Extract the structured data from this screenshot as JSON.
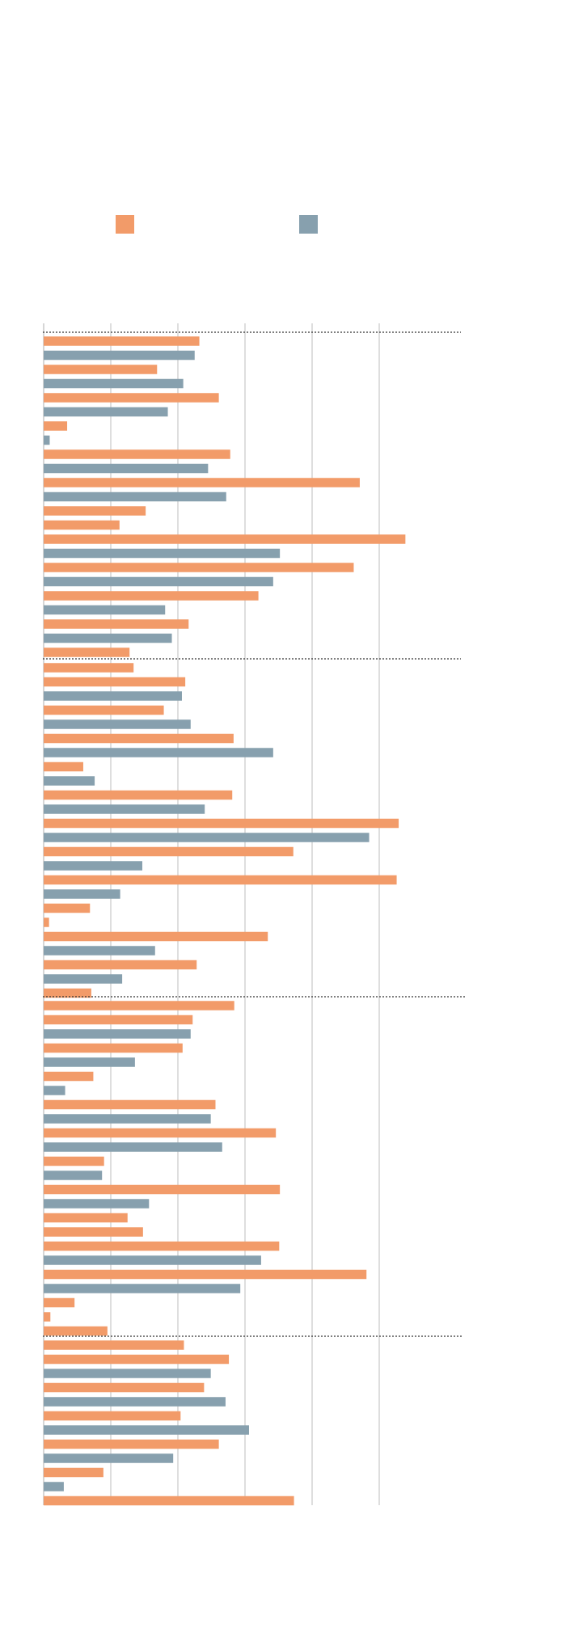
{
  "colors": {
    "series_a": "#f29b69",
    "series_b": "#87a0ae",
    "grid": "#c8c8c8",
    "separator": "#333333"
  },
  "chart_data": {
    "type": "bar",
    "orientation": "horizontal",
    "title": "",
    "xlabel": "",
    "ylabel": "",
    "grid": true,
    "legend_position": "top",
    "xlim": [
      0,
      6.2
    ],
    "series": [
      {
        "name": "",
        "color": "#f29b69"
      },
      {
        "name": "",
        "color": "#87a0ae"
      }
    ],
    "groups": [
      [
        [
          "a",
          2.32
        ],
        [
          "b",
          2.25
        ],
        [
          "a",
          1.69
        ],
        [
          "b",
          2.08
        ],
        [
          "a",
          2.61
        ],
        [
          "b",
          1.85
        ],
        [
          "a",
          0.35
        ],
        [
          "b",
          0.09
        ],
        [
          "a",
          2.78
        ],
        [
          "b",
          2.45
        ],
        [
          "a",
          4.71
        ],
        [
          "b",
          2.72
        ],
        [
          "a",
          1.52
        ],
        [
          "a",
          1.13
        ],
        [
          "a",
          5.39
        ],
        [
          "b",
          3.52
        ],
        [
          "a",
          4.62
        ],
        [
          "b",
          3.42
        ],
        [
          "a",
          3.2
        ],
        [
          "b",
          1.81
        ],
        [
          "a",
          2.16
        ],
        [
          "b",
          1.91
        ],
        [
          "a",
          1.28
        ]
      ],
      [
        [
          "a",
          1.34
        ],
        [
          "a",
          2.11
        ],
        [
          "b",
          2.06
        ],
        [
          "a",
          1.79
        ],
        [
          "b",
          2.19
        ],
        [
          "a",
          2.83
        ],
        [
          "b",
          3.42
        ],
        [
          "a",
          0.59
        ],
        [
          "b",
          0.76
        ],
        [
          "a",
          2.81
        ],
        [
          "b",
          2.4
        ],
        [
          "a",
          5.29
        ],
        [
          "b",
          4.85
        ],
        [
          "a",
          3.72
        ],
        [
          "b",
          1.47
        ],
        [
          "a",
          5.26
        ],
        [
          "b",
          1.14
        ],
        [
          "a",
          0.69
        ],
        [
          "a",
          0.08
        ],
        [
          "a",
          3.34
        ],
        [
          "b",
          1.66
        ],
        [
          "a",
          2.28
        ],
        [
          "b",
          1.17
        ],
        [
          "a",
          0.71
        ]
      ],
      [
        [
          "a",
          2.84
        ],
        [
          "a",
          2.22
        ],
        [
          "b",
          2.19
        ],
        [
          "a",
          2.07
        ],
        [
          "b",
          1.36
        ],
        [
          "a",
          0.74
        ],
        [
          "b",
          0.32
        ],
        [
          "a",
          2.56
        ],
        [
          "b",
          2.49
        ],
        [
          "a",
          3.46
        ],
        [
          "b",
          2.66
        ],
        [
          "a",
          0.9
        ],
        [
          "b",
          0.87
        ],
        [
          "a",
          3.52
        ],
        [
          "b",
          1.57
        ],
        [
          "a",
          1.25
        ],
        [
          "a",
          1.48
        ],
        [
          "a",
          3.51
        ],
        [
          "b",
          3.24
        ],
        [
          "a",
          4.81
        ],
        [
          "b",
          2.93
        ],
        [
          "a",
          0.46
        ],
        [
          "a",
          0.1
        ],
        [
          "a",
          0.95
        ]
      ],
      [
        [
          "a",
          2.09
        ],
        [
          "a",
          2.76
        ],
        [
          "b",
          2.49
        ],
        [
          "a",
          2.39
        ],
        [
          "b",
          2.71
        ],
        [
          "a",
          2.04
        ],
        [
          "b",
          3.06
        ],
        [
          "a",
          2.61
        ],
        [
          "b",
          1.93
        ],
        [
          "a",
          0.89
        ],
        [
          "b",
          0.3
        ],
        [
          "a",
          3.73
        ]
      ]
    ]
  }
}
